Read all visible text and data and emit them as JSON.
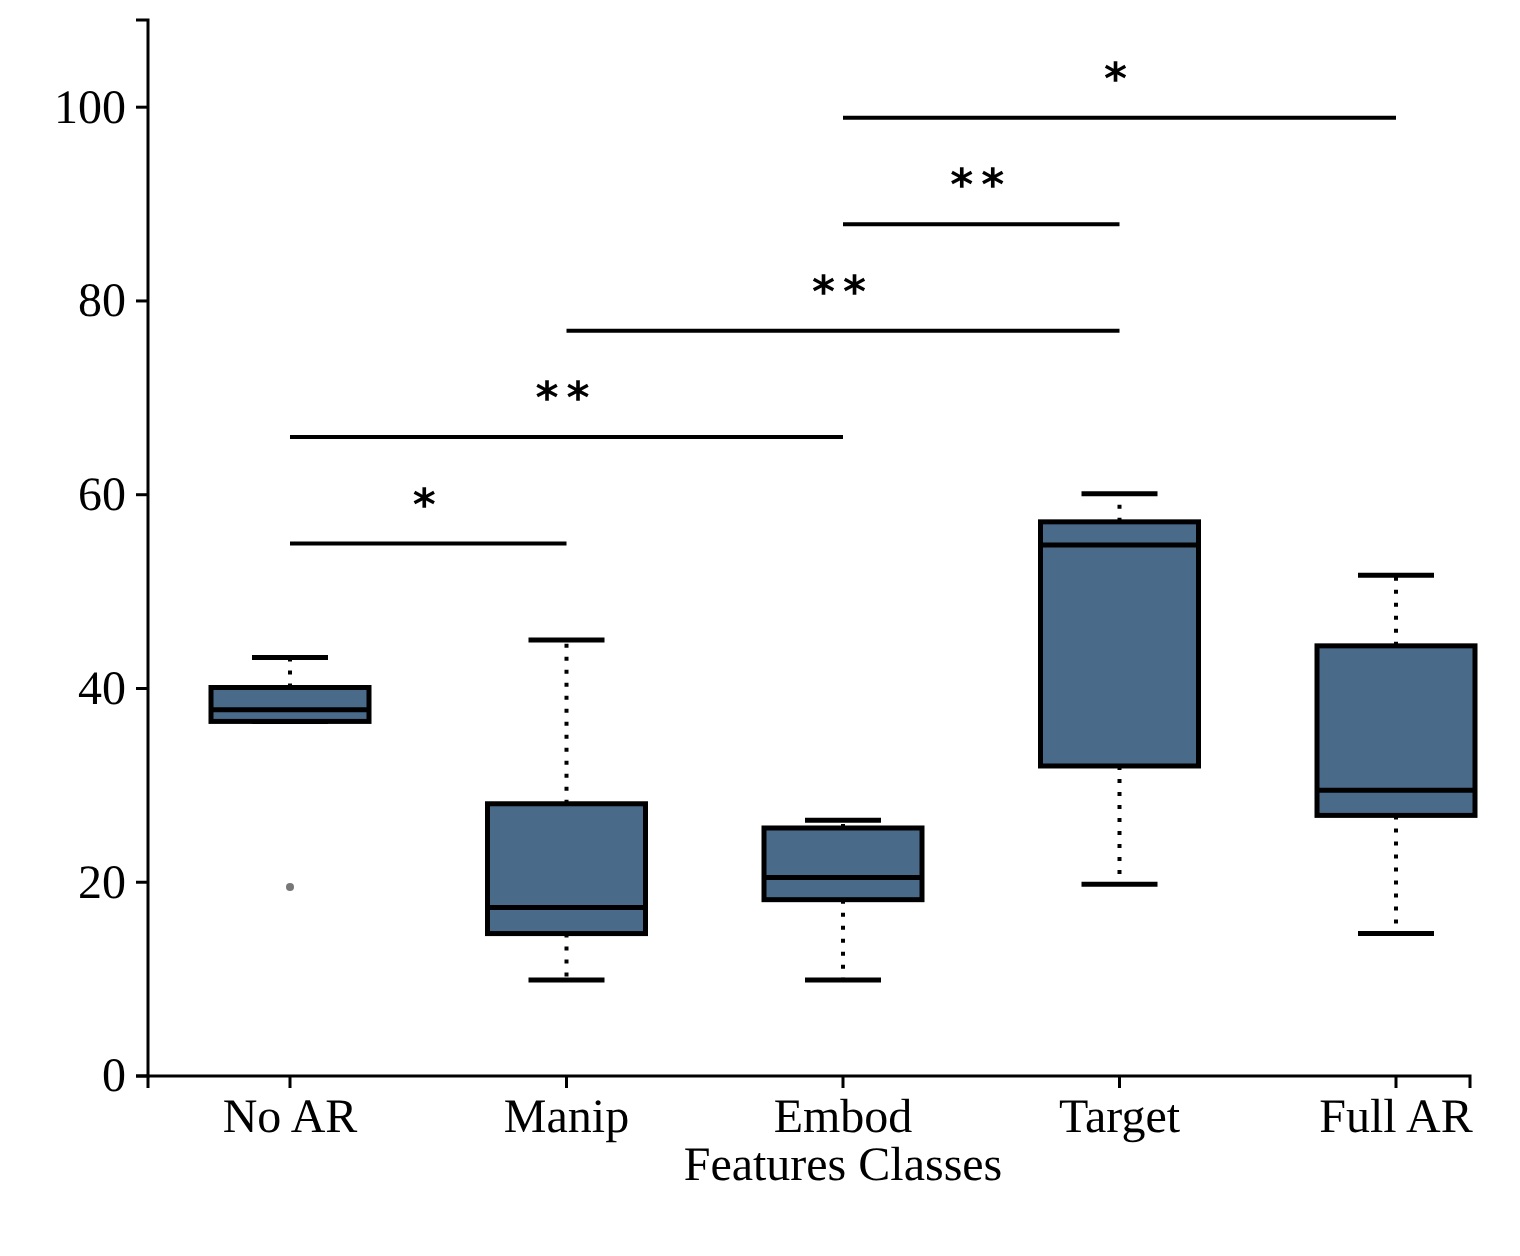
{
  "chart_data": {
    "type": "box",
    "xlabel": "Features Classes",
    "categories": [
      "No AR",
      "Manip",
      "Embod",
      "Target",
      "Full AR"
    ],
    "color": "#4a6a8a",
    "ylim": [
      0,
      109
    ],
    "yticks": [
      0,
      20,
      40,
      60,
      80,
      100
    ],
    "boxes": [
      {
        "low": 36.6,
        "q1": 36.6,
        "median": 37.8,
        "q3": 40.1,
        "high": 43.2,
        "outliers": [
          19.5
        ]
      },
      {
        "low": 9.9,
        "q1": 14.7,
        "median": 17.4,
        "q3": 28.1,
        "high": 45
      },
      {
        "low": 9.9,
        "q1": 18.2,
        "median": 20.5,
        "q3": 25.6,
        "high": 26.4
      },
      {
        "low": 19.8,
        "q1": 32,
        "median": 54.8,
        "q3": 57.2,
        "high": 60.1
      },
      {
        "low": 14.7,
        "q1": 26.9,
        "median": 29.5,
        "q3": 44.4,
        "high": 51.7
      }
    ],
    "annotations": [
      "*",
      "**",
      "**",
      "**",
      "*"
    ]
  }
}
